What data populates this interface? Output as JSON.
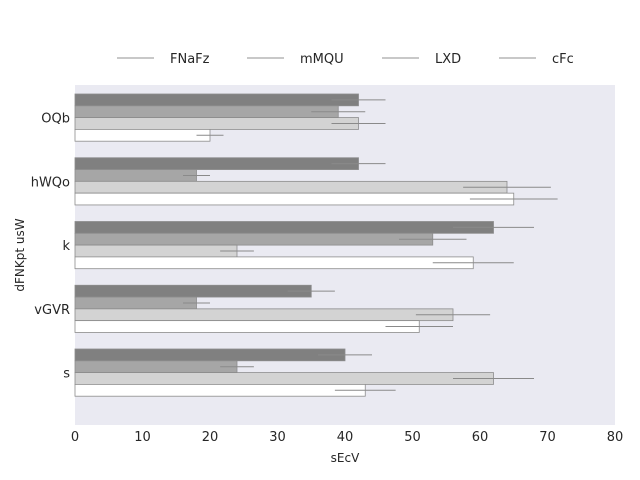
{
  "chart_data": {
    "type": "bar",
    "orientation": "horizontal",
    "title": "",
    "xlabel": "sEcV",
    "ylabel": "dFNKpt usW",
    "categories": [
      "OQb",
      "hWQo",
      "k",
      "vGVR",
      "s"
    ],
    "xlim": [
      0,
      80
    ],
    "xticks": [
      0,
      10,
      20,
      30,
      40,
      50,
      60,
      70,
      80
    ],
    "grid": false,
    "legend_position": "top",
    "series": [
      {
        "name": "FNaFz",
        "color": "#808080",
        "values": [
          42,
          42,
          62,
          35,
          40
        ],
        "errors": [
          4,
          4,
          6,
          3.5,
          4
        ]
      },
      {
        "name": "mMQU",
        "color": "#a6a6a6",
        "values": [
          39,
          18,
          53,
          18,
          24
        ],
        "errors": [
          4,
          2,
          5,
          2,
          2.5
        ]
      },
      {
        "name": "LXD",
        "color": "#d3d3d3",
        "values": [
          42,
          64,
          24,
          56,
          62
        ],
        "errors": [
          4,
          6.5,
          2.5,
          5.5,
          6
        ]
      },
      {
        "name": "cFc",
        "color": "#ffffff",
        "values": [
          20,
          65,
          59,
          51,
          43
        ],
        "errors": [
          2,
          6.5,
          6,
          5,
          4.5
        ]
      }
    ]
  }
}
